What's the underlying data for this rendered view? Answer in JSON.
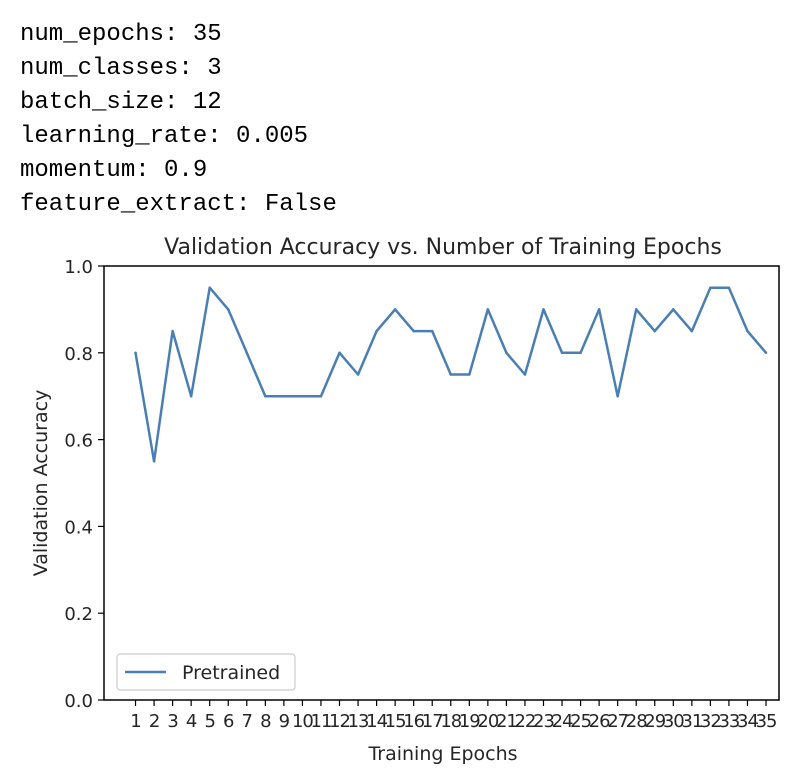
{
  "console": {
    "lines": [
      "num_epochs: 35",
      "num_classes: 3",
      "batch_size: 12",
      "learning_rate: 0.005",
      "momentum: 0.9",
      "feature_extract: False"
    ]
  },
  "chart_data": {
    "type": "line",
    "title": "Validation Accuracy vs. Number of Training Epochs",
    "xlabel": "Training Epochs",
    "ylabel": "Validation Accuracy",
    "x": [
      1,
      2,
      3,
      4,
      5,
      6,
      7,
      8,
      9,
      10,
      11,
      12,
      13,
      14,
      15,
      16,
      17,
      18,
      19,
      20,
      21,
      22,
      23,
      24,
      25,
      26,
      27,
      28,
      29,
      30,
      31,
      32,
      33,
      34,
      35
    ],
    "xticks": [
      1,
      2,
      3,
      4,
      5,
      6,
      7,
      8,
      9,
      10,
      11,
      12,
      13,
      14,
      15,
      16,
      17,
      18,
      19,
      20,
      21,
      22,
      23,
      24,
      25,
      26,
      27,
      28,
      29,
      30,
      31,
      32,
      33,
      34,
      35
    ],
    "xlim": [
      -0.7,
      35.7
    ],
    "ylim": [
      0,
      1.0
    ],
    "yticks": [
      0.0,
      0.2,
      0.4,
      0.6,
      0.8,
      1.0
    ],
    "ytick_labels": [
      "0.0",
      "0.2",
      "0.4",
      "0.6",
      "0.8",
      "1.0"
    ],
    "series": [
      {
        "name": "Pretrained",
        "color": "#4a7fb5",
        "values": [
          0.8,
          0.55,
          0.85,
          0.7,
          0.95,
          0.9,
          0.8,
          0.7,
          0.7,
          0.7,
          0.7,
          0.8,
          0.75,
          0.85,
          0.9,
          0.85,
          0.85,
          0.75,
          0.75,
          0.9,
          0.8,
          0.75,
          0.9,
          0.8,
          0.8,
          0.9,
          0.7,
          0.9,
          0.85,
          0.9,
          0.85,
          0.95,
          0.95,
          0.85,
          0.8
        ]
      }
    ],
    "legend": "lower-left",
    "grid": false
  }
}
